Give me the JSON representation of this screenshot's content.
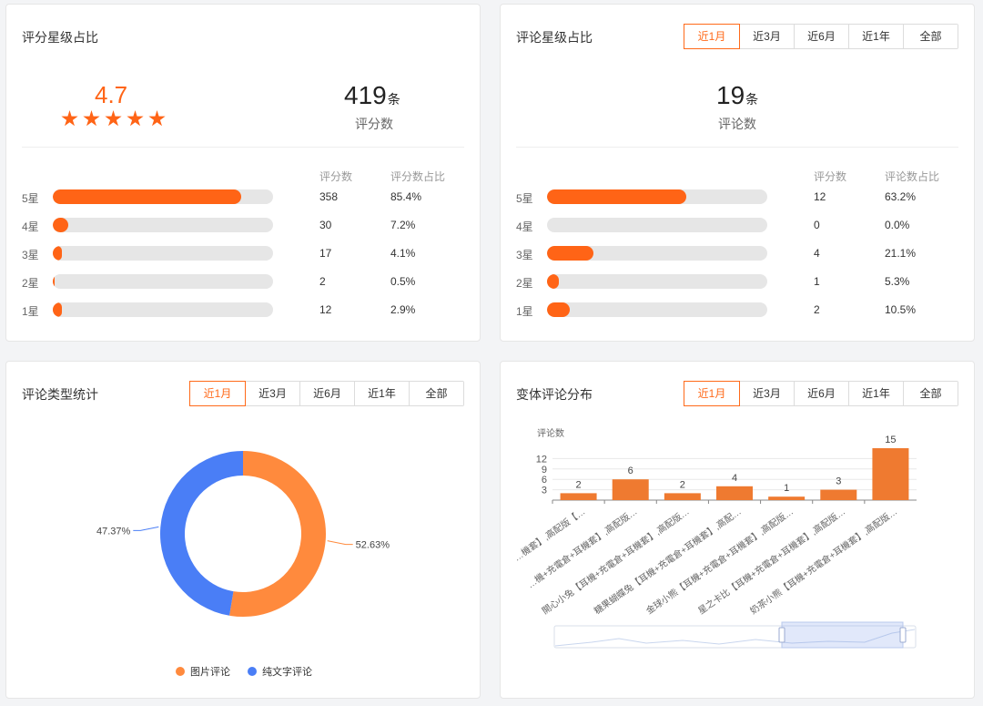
{
  "rating_card": {
    "title": "评分星级占比",
    "avg_score": "4.7",
    "total_count": "419",
    "total_unit": "条",
    "total_label": "评分数",
    "col_count": "评分数",
    "col_pct": "评分数占比",
    "rows": [
      {
        "label": "5星",
        "count": "358",
        "pct": "85.4%",
        "fill": 0.854
      },
      {
        "label": "4星",
        "count": "30",
        "pct": "7.2%",
        "fill": 0.072
      },
      {
        "label": "3星",
        "count": "17",
        "pct": "4.1%",
        "fill": 0.041
      },
      {
        "label": "2星",
        "count": "2",
        "pct": "0.5%",
        "fill": 0.005
      },
      {
        "label": "1星",
        "count": "12",
        "pct": "2.9%",
        "fill": 0.029
      }
    ],
    "star_color": "#ff6416"
  },
  "review_card": {
    "title": "评论星级占比",
    "tabs": [
      "近1月",
      "近3月",
      "近6月",
      "近1年",
      "全部"
    ],
    "active_tab": 0,
    "total_count": "19",
    "total_unit": "条",
    "total_label": "评论数",
    "col_count": "评分数",
    "col_pct": "评论数占比",
    "rows": [
      {
        "label": "5星",
        "count": "12",
        "pct": "63.2%",
        "fill": 0.632
      },
      {
        "label": "4星",
        "count": "0",
        "pct": "0.0%",
        "fill": 0.0
      },
      {
        "label": "3星",
        "count": "4",
        "pct": "21.1%",
        "fill": 0.211
      },
      {
        "label": "2星",
        "count": "1",
        "pct": "5.3%",
        "fill": 0.053
      },
      {
        "label": "1星",
        "count": "2",
        "pct": "10.5%",
        "fill": 0.105
      }
    ]
  },
  "type_card": {
    "title": "评论类型统计",
    "tabs": [
      "近1月",
      "近3月",
      "近6月",
      "近1年",
      "全部"
    ],
    "active_tab": 0,
    "legend": [
      {
        "name": "图片评论",
        "color": "#ff8a3d"
      },
      {
        "name": "纯文字评论",
        "color": "#4a7ef6"
      }
    ]
  },
  "variant_card": {
    "title": "变体评论分布",
    "tabs": [
      "近1月",
      "近3月",
      "近6月",
      "近1年",
      "全部"
    ],
    "active_tab": 0,
    "bar_color": "#ef7a30"
  },
  "chart_data": [
    {
      "type": "pie",
      "labels": [
        "图片评论",
        "纯文字评论"
      ],
      "values": [
        52.63,
        47.37
      ],
      "value_labels": [
        "52.63%",
        "47.37%"
      ],
      "donut": true,
      "colors": [
        "#ff8a3d",
        "#4a7ef6"
      ],
      "legend_position": "bottom"
    },
    {
      "type": "bar",
      "ylabel": "评论数",
      "yticks": [
        "3",
        "6",
        "9",
        "12"
      ],
      "ylim": [
        0,
        15
      ],
      "categories": [
        "…機套】,高配版【…",
        "…機+充電倉+耳機套】,高配版…",
        "開心小兔【耳機+充電倉+耳機套】,高配版…",
        "糖果蝴蝶兔【耳機+充電倉+耳機套】,高配…",
        "金球小熊【耳機+充電倉+耳機套】,高配版…",
        "星之卡比【耳機+充電倉+耳機套】,高配版…",
        "奶茶小熊【耳機+充電倉+耳機套】,高配版…"
      ],
      "values": [
        2,
        6,
        2,
        4,
        1,
        3,
        15
      ],
      "value_labels": [
        "2",
        "6",
        "2",
        "4",
        "1",
        "3",
        "15"
      ],
      "grid": true,
      "has_zoom_slider": true
    }
  ]
}
